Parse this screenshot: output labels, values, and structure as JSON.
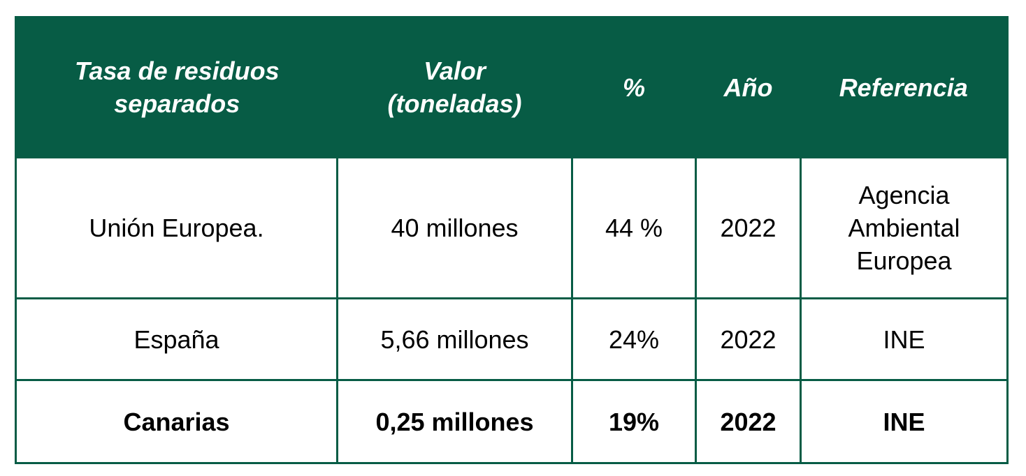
{
  "colors": {
    "header_bg": "#075C45",
    "header_text": "#ffffff",
    "border": "#075C45",
    "body_text": "#000000",
    "background": "#ffffff"
  },
  "table": {
    "headers": [
      {
        "line1": "Tasa de residuos",
        "line2": "separados"
      },
      {
        "line1": "Valor",
        "line2": "(toneladas)"
      },
      {
        "line1": "%",
        "line2": ""
      },
      {
        "line1": "Año",
        "line2": ""
      },
      {
        "line1": "Referencia",
        "line2": ""
      }
    ],
    "rows": [
      {
        "region": "Unión Europea.",
        "valor": "40 millones",
        "porcentaje": "44 %",
        "anio": "2022",
        "referencia_lines": [
          "Agencia",
          "Ambiental",
          "Europea"
        ],
        "bold": false
      },
      {
        "region": "España",
        "valor": "5,66 millones",
        "porcentaje": "24%",
        "anio": "2022",
        "referencia_lines": [
          "INE"
        ],
        "bold": false
      },
      {
        "region": "Canarias",
        "valor": "0,25 millones",
        "porcentaje": "19%",
        "anio": "2022",
        "referencia_lines": [
          "INE"
        ],
        "bold": true
      }
    ]
  }
}
